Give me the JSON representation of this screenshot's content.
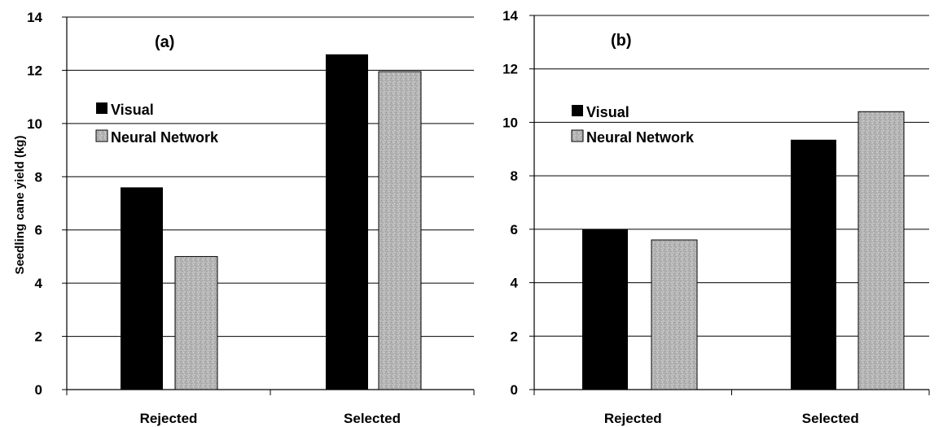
{
  "chart_data": [
    {
      "type": "bar",
      "panel_label": "(a)",
      "categories": [
        "Rejected",
        "Selected"
      ],
      "series": [
        {
          "name": "Visual",
          "values": [
            7.6,
            12.6
          ]
        },
        {
          "name": "Neural Network",
          "values": [
            5.0,
            11.95
          ]
        }
      ],
      "xlabel": "",
      "ylabel": "Seedling cane yield (kg)",
      "ylim": [
        0,
        14
      ],
      "yticks": [
        "0",
        "2",
        "4",
        "6",
        "8",
        "10",
        "12",
        "14"
      ],
      "grid": true,
      "legend_position": "left"
    },
    {
      "type": "bar",
      "panel_label": "(b)",
      "categories": [
        "Rejected",
        "Selected"
      ],
      "series": [
        {
          "name": "Visual",
          "values": [
            6.0,
            9.35
          ]
        },
        {
          "name": "Neural Network",
          "values": [
            5.6,
            10.4
          ]
        }
      ],
      "xlabel": "",
      "ylabel": "",
      "ylim": [
        0,
        14
      ],
      "yticks": [
        "0",
        "2",
        "4",
        "6",
        "8",
        "10",
        "12",
        "14"
      ],
      "grid": true,
      "legend_position": "left"
    }
  ],
  "colors": {
    "visual": "#000000",
    "neural_network": "#b3b3b3",
    "grid": "#000000"
  }
}
